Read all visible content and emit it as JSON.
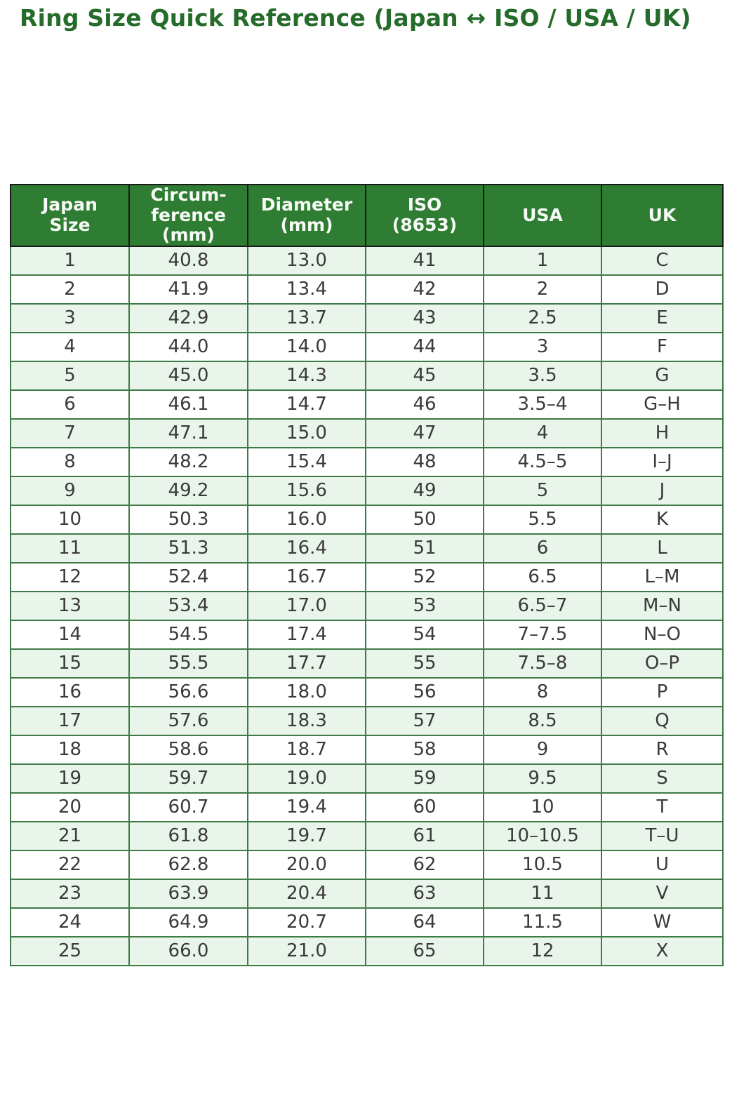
{
  "title": "Ring Size Quick Reference (Japan ↔ ISO / USA / UK)",
  "colors": {
    "title_green": "#256b2a",
    "header_bg": "#2e7d32",
    "header_text": "#f7faf7",
    "header_border": "#1a1a1a",
    "body_border": "#3e7b46",
    "row_alt_bg": "#e9f4ea",
    "row_bg": "#ffffff",
    "cell_text": "#3a3a3a"
  },
  "chart_data": {
    "type": "table",
    "title": "Ring Size Quick Reference (Japan ↔ ISO / USA / UK)",
    "columns": [
      "Japan Size",
      "Circumference (mm)",
      "Diameter (mm)",
      "ISO (8653)",
      "USA",
      "UK"
    ],
    "header_display": [
      "Japan\nSize",
      "Circum-\nference\n(mm)",
      "Diameter\n(mm)",
      "ISO\n(8653)",
      "USA",
      "UK"
    ],
    "rows": [
      [
        "1",
        "40.8",
        "13.0",
        "41",
        "1",
        "C"
      ],
      [
        "2",
        "41.9",
        "13.4",
        "42",
        "2",
        "D"
      ],
      [
        "3",
        "42.9",
        "13.7",
        "43",
        "2.5",
        "E"
      ],
      [
        "4",
        "44.0",
        "14.0",
        "44",
        "3",
        "F"
      ],
      [
        "5",
        "45.0",
        "14.3",
        "45",
        "3.5",
        "G"
      ],
      [
        "6",
        "46.1",
        "14.7",
        "46",
        "3.5–4",
        "G–H"
      ],
      [
        "7",
        "47.1",
        "15.0",
        "47",
        "4",
        "H"
      ],
      [
        "8",
        "48.2",
        "15.4",
        "48",
        "4.5–5",
        "I–J"
      ],
      [
        "9",
        "49.2",
        "15.6",
        "49",
        "5",
        "J"
      ],
      [
        "10",
        "50.3",
        "16.0",
        "50",
        "5.5",
        "K"
      ],
      [
        "11",
        "51.3",
        "16.4",
        "51",
        "6",
        "L"
      ],
      [
        "12",
        "52.4",
        "16.7",
        "52",
        "6.5",
        "L–M"
      ],
      [
        "13",
        "53.4",
        "17.0",
        "53",
        "6.5–7",
        "M–N"
      ],
      [
        "14",
        "54.5",
        "17.4",
        "54",
        "7–7.5",
        "N–O"
      ],
      [
        "15",
        "55.5",
        "17.7",
        "55",
        "7.5–8",
        "O–P"
      ],
      [
        "16",
        "56.6",
        "18.0",
        "56",
        "8",
        "P"
      ],
      [
        "17",
        "57.6",
        "18.3",
        "57",
        "8.5",
        "Q"
      ],
      [
        "18",
        "58.6",
        "18.7",
        "58",
        "9",
        "R"
      ],
      [
        "19",
        "59.7",
        "19.0",
        "59",
        "9.5",
        "S"
      ],
      [
        "20",
        "60.7",
        "19.4",
        "60",
        "10",
        "T"
      ],
      [
        "21",
        "61.8",
        "19.7",
        "61",
        "10–10.5",
        "T–U"
      ],
      [
        "22",
        "62.8",
        "20.0",
        "62",
        "10.5",
        "U"
      ],
      [
        "23",
        "63.9",
        "20.4",
        "63",
        "11",
        "V"
      ],
      [
        "24",
        "64.9",
        "20.7",
        "64",
        "11.5",
        "W"
      ],
      [
        "25",
        "66.0",
        "21.0",
        "65",
        "12",
        "X"
      ]
    ]
  }
}
